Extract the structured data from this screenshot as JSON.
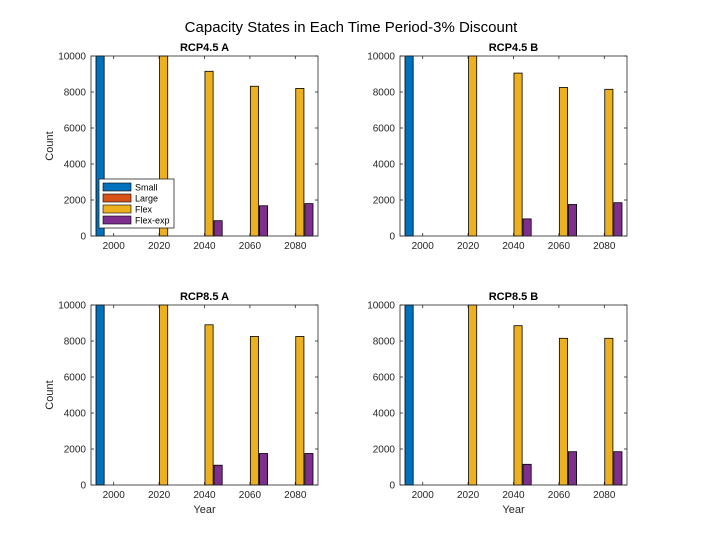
{
  "figure_title": "Capacity States in Each Time Period-3% Discount",
  "series_colors": [
    "#0072BD",
    "#D95319",
    "#EDB120",
    "#7E2F8E"
  ],
  "chart_data": [
    {
      "type": "bar",
      "title": "RCP4.5 A",
      "xlabel": "",
      "ylabel": "Count",
      "categories": [
        "2000",
        "2020",
        "2040",
        "2060",
        "2080"
      ],
      "ylim": [
        0,
        10000
      ],
      "yticks": [
        0,
        2000,
        4000,
        6000,
        8000,
        10000
      ],
      "series": [
        {
          "name": "Small",
          "values": [
            10000,
            0,
            0,
            0,
            0
          ]
        },
        {
          "name": "Large",
          "values": [
            0,
            0,
            0,
            0,
            0
          ]
        },
        {
          "name": "Flex",
          "values": [
            0,
            10000,
            9150,
            8320,
            8200
          ]
        },
        {
          "name": "Flex-exp",
          "values": [
            0,
            0,
            850,
            1680,
            1800
          ]
        }
      ],
      "legend": "bottom-left"
    },
    {
      "type": "bar",
      "title": "RCP4.5 B",
      "xlabel": "",
      "ylabel": "",
      "categories": [
        "2000",
        "2020",
        "2040",
        "2060",
        "2080"
      ],
      "ylim": [
        0,
        10000
      ],
      "yticks": [
        0,
        2000,
        4000,
        6000,
        8000,
        10000
      ],
      "series": [
        {
          "name": "Small",
          "values": [
            10000,
            0,
            0,
            0,
            0
          ]
        },
        {
          "name": "Large",
          "values": [
            0,
            0,
            0,
            0,
            0
          ]
        },
        {
          "name": "Flex",
          "values": [
            0,
            10000,
            9050,
            8250,
            8150
          ]
        },
        {
          "name": "Flex-exp",
          "values": [
            0,
            0,
            950,
            1750,
            1850
          ]
        }
      ]
    },
    {
      "type": "bar",
      "title": "RCP8.5 A",
      "xlabel": "Year",
      "ylabel": "Count",
      "categories": [
        "2000",
        "2020",
        "2040",
        "2060",
        "2080"
      ],
      "ylim": [
        0,
        10000
      ],
      "yticks": [
        0,
        2000,
        4000,
        6000,
        8000,
        10000
      ],
      "series": [
        {
          "name": "Small",
          "values": [
            10000,
            0,
            0,
            0,
            0
          ]
        },
        {
          "name": "Large",
          "values": [
            0,
            0,
            0,
            0,
            0
          ]
        },
        {
          "name": "Flex",
          "values": [
            0,
            10000,
            8900,
            8250,
            8250
          ]
        },
        {
          "name": "Flex-exp",
          "values": [
            0,
            0,
            1100,
            1750,
            1750
          ]
        }
      ]
    },
    {
      "type": "bar",
      "title": "RCP8.5 B",
      "xlabel": "Year",
      "ylabel": "",
      "categories": [
        "2000",
        "2020",
        "2040",
        "2060",
        "2080"
      ],
      "ylim": [
        0,
        10000
      ],
      "yticks": [
        0,
        2000,
        4000,
        6000,
        8000,
        10000
      ],
      "series": [
        {
          "name": "Small",
          "values": [
            10000,
            0,
            0,
            0,
            0
          ]
        },
        {
          "name": "Large",
          "values": [
            0,
            0,
            0,
            0,
            0
          ]
        },
        {
          "name": "Flex",
          "values": [
            0,
            10000,
            8850,
            8150,
            8150
          ]
        },
        {
          "name": "Flex-exp",
          "values": [
            0,
            0,
            1150,
            1850,
            1850
          ]
        }
      ]
    }
  ]
}
